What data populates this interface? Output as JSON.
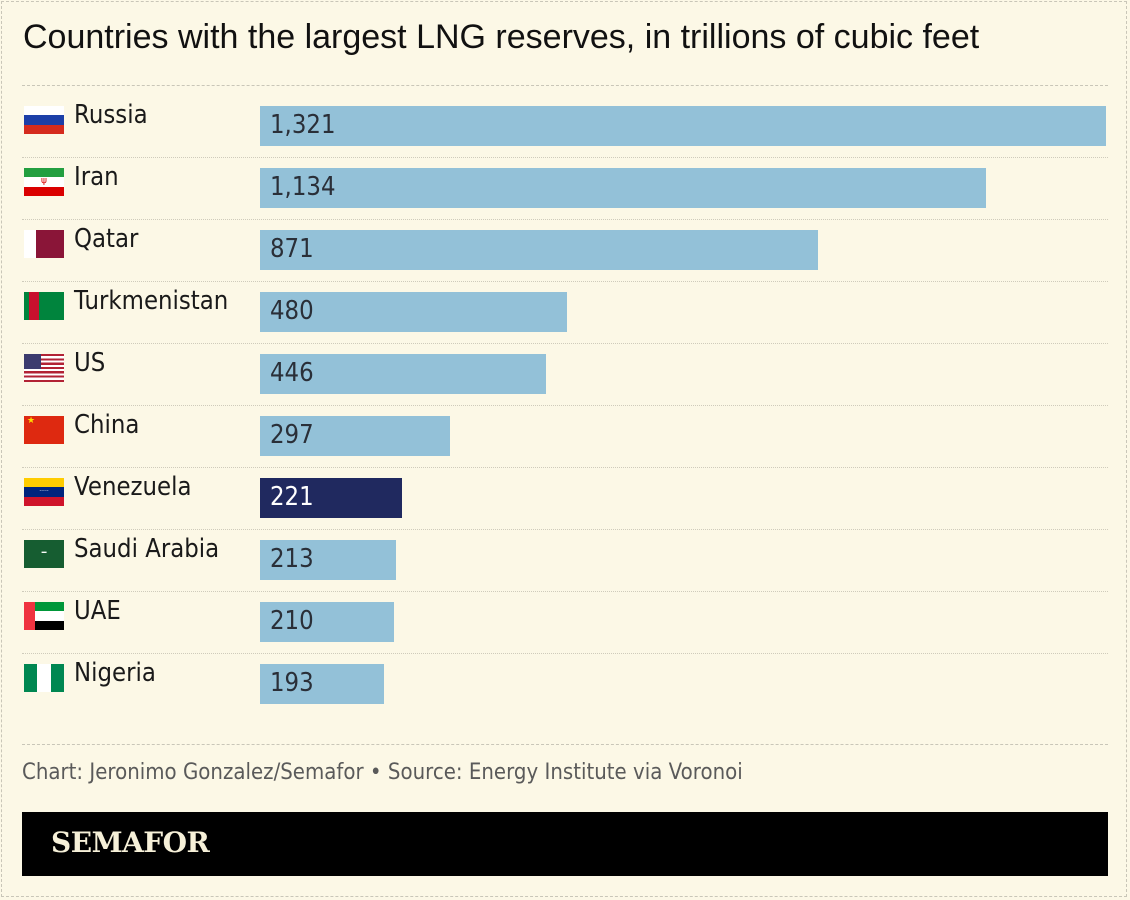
{
  "chart_data": {
    "type": "bar",
    "orientation": "horizontal",
    "title": "Countries with the largest LNG reserves, in trillions of cubic feet",
    "categories": [
      "Russia",
      "Iran",
      "Qatar",
      "Turkmenistan",
      "US",
      "China",
      "Venezuela",
      "Saudi Arabia",
      "UAE",
      "Nigeria"
    ],
    "values": [
      1321,
      1134,
      871,
      480,
      446,
      297,
      221,
      213,
      210,
      193
    ],
    "value_labels": [
      "1,321",
      "1,134",
      "871",
      "480",
      "446",
      "297",
      "221",
      "213",
      "210",
      "193"
    ],
    "highlight": "Venezuela",
    "xlim": [
      0,
      1321
    ],
    "grid": false,
    "colors": {
      "bar": "#93c1d8",
      "highlight": "#20295f",
      "background": "#fcf8e6"
    }
  },
  "source": "Chart: Jeronimo Gonzalez/Semafor • Source: Energy Institute via Voronoi",
  "logo": "SEMAFOR"
}
